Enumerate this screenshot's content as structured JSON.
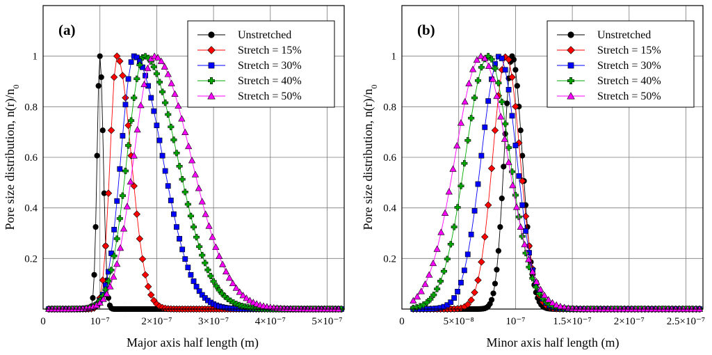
{
  "colors": {
    "Unstretched": "#000000",
    "Stretch = 15%": "#ff0000",
    "Stretch = 30%": "#0000ff",
    "Stretch = 40%": "#00aa00",
    "Stretch = 50%": "#ff00ff"
  },
  "chart_data": [
    {
      "type": "line",
      "panel_label": "(a)",
      "xlabel": "Major axis half length (m)",
      "ylabel": "Pore size distribution, n(r)/n",
      "ylabel_sub": "0",
      "xlim": [
        0,
        5.3e-07
      ],
      "ylim": [
        0,
        1.2
      ],
      "xticks": [
        {
          "value": 0,
          "label": "0"
        },
        {
          "value": 1e-07,
          "label": "10⁻⁷"
        },
        {
          "value": 2e-07,
          "label": "2×10⁻⁷"
        },
        {
          "value": 3e-07,
          "label": "3×10⁻⁷"
        },
        {
          "value": 4e-07,
          "label": "4×10⁻⁷"
        },
        {
          "value": 5e-07,
          "label": "5×10⁻⁷"
        }
      ],
      "yticks": [
        {
          "value": 0.2,
          "label": "0.2"
        },
        {
          "value": 0.4,
          "label": "0.4"
        },
        {
          "value": 0.6,
          "label": "0.6"
        },
        {
          "value": 0.8,
          "label": "0.8"
        },
        {
          "value": 1,
          "label": "1"
        }
      ],
      "legend_position": "top-right",
      "series": [
        {
          "name": "Unstretched",
          "marker": "circle",
          "peak": 1e-07,
          "left_width": 5e-09,
          "right_width": 6e-09,
          "x_start": 1e-08,
          "x_end": 5.25e-07,
          "step": 2.5e-09
        },
        {
          "name": "Stretch = 15%",
          "marker": "diamond",
          "peak": 1.3e-07,
          "left_width": 1.2e-08,
          "right_width": 2.5e-08,
          "x_start": 1e-08,
          "x_end": 5.25e-07,
          "step": 5e-09
        },
        {
          "name": "Stretch = 30%",
          "marker": "square",
          "peak": 1.6e-07,
          "left_width": 2.3e-08,
          "right_width": 5e-08,
          "x_start": 1e-08,
          "x_end": 5.25e-07,
          "step": 5e-09
        },
        {
          "name": "Stretch = 40%",
          "marker": "cross",
          "peak": 1.78e-07,
          "left_width": 3e-08,
          "right_width": 5.8e-08,
          "x_start": 1e-08,
          "x_end": 5.25e-07,
          "step": 5e-09
        },
        {
          "name": "Stretch = 50%",
          "marker": "triangle",
          "peak": 1.95e-07,
          "left_width": 3.5e-08,
          "right_width": 6.5e-08,
          "x_start": 1e-08,
          "x_end": 5.25e-07,
          "step": 6e-09
        }
      ]
    },
    {
      "type": "line",
      "panel_label": "(b)",
      "xlabel": "Minor axis half length (m)",
      "ylabel": "Pore size distribution, n(r)/n",
      "ylabel_sub": "0",
      "xlim": [
        0,
        2.65e-07
      ],
      "ylim": [
        0,
        1.2
      ],
      "xticks": [
        {
          "value": 0,
          "label": "0"
        },
        {
          "value": 5e-08,
          "label": "5×10⁻⁸"
        },
        {
          "value": 1e-07,
          "label": "10⁻⁷"
        },
        {
          "value": 1.5e-07,
          "label": "1.5×10⁻⁷"
        },
        {
          "value": 2e-07,
          "label": "2×10⁻⁷"
        },
        {
          "value": 2.5e-07,
          "label": "2.5×10⁻⁷"
        }
      ],
      "yticks": [
        {
          "value": 0.2,
          "label": "0.2"
        },
        {
          "value": 0.4,
          "label": "0.4"
        },
        {
          "value": 0.6,
          "label": "0.6"
        },
        {
          "value": 0.8,
          "label": "0.8"
        },
        {
          "value": 1,
          "label": "1"
        }
      ],
      "legend_position": "top-right",
      "series": [
        {
          "name": "Unstretched",
          "marker": "circle",
          "peak": 9.7e-08,
          "left_width": 7e-09,
          "right_width": 9e-09,
          "x_start": 1e-08,
          "x_end": 2.62e-07,
          "step": 1.5e-09
        },
        {
          "name": "Stretch = 15%",
          "marker": "diamond",
          "peak": 9.2e-08,
          "left_width": 1.2e-08,
          "right_width": 1.2e-08,
          "x_start": 1e-08,
          "x_end": 2.62e-07,
          "step": 3e-09
        },
        {
          "name": "Stretch = 30%",
          "marker": "square",
          "peak": 8.6e-08,
          "left_width": 1.6e-08,
          "right_width": 1.5e-08,
          "x_start": 1e-08,
          "x_end": 2.62e-07,
          "step": 3e-09
        },
        {
          "name": "Stretch = 40%",
          "marker": "cross",
          "peak": 7.6e-08,
          "left_width": 2e-08,
          "right_width": 1.9e-08,
          "x_start": 1e-08,
          "x_end": 2.62e-07,
          "step": 3e-09
        },
        {
          "name": "Stretch = 50%",
          "marker": "triangle",
          "peak": 7e-08,
          "left_width": 2.3e-08,
          "right_width": 2.3e-08,
          "x_start": 1e-08,
          "x_end": 2.62e-07,
          "step": 3.5e-09
        }
      ]
    }
  ]
}
